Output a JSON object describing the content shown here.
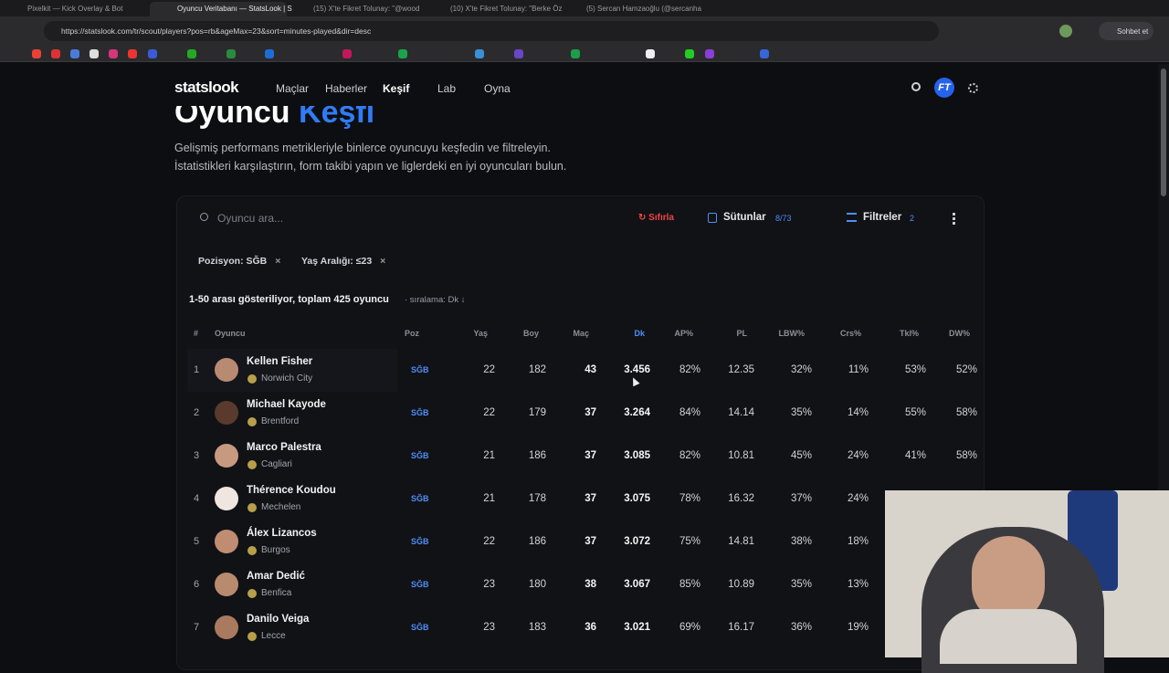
{
  "browser": {
    "tabs": [
      "Pixelkit — Kick Overlay & Bot",
      "Oyuncu Veritabanı — StatsLook | S",
      "(15) X'te Fikret Tolunay: \"@wood",
      "(10) X'te Fikret Tolunay: \"Berke Öz",
      "(5) Sercan Hamzaoğlu (@sercanha"
    ],
    "url": "https://statslook.com/tr/scout/players?pos=rb&ageMax=23&sort=minutes-played&dir=desc",
    "chat_button": "Sohbet et"
  },
  "nav": {
    "logo": "statslook",
    "links": [
      "Maçlar",
      "Haberler",
      "Keşif",
      "Lab",
      "Oyna"
    ],
    "avatar": "FT"
  },
  "header": {
    "title_main": "Oyuncu",
    "title_accent": "Keşfi",
    "description": [
      "Gelişmiş performans metrikleriyle binlerce oyuncuyu keşfedin ve filtreleyin.",
      "İstatistikleri karşılaştırın, form takibi yapın ve liglerdeki en iyi oyuncuları bulun."
    ]
  },
  "toolbar": {
    "search_placeholder": "Oyuncu ara...",
    "reset": "Sıfırla",
    "columns": "Sütunlar",
    "columns_count": "8/73",
    "filters": "Filtreler",
    "filters_count": "2"
  },
  "chips": [
    "Pozisyon: SĞB",
    "Yaş Aralığı: ≤23"
  ],
  "summary": "1-50 arası gösteriliyor, toplam 425 oyuncu",
  "sort_note": "· sıralama: Dk ↓",
  "table": {
    "columns": [
      "#",
      "Oyuncu",
      "Poz",
      "Yaş",
      "Boy",
      "Maç",
      "Dk",
      "AP%",
      "PL",
      "LBW%",
      "Crs%",
      "Tkl%",
      "DW%"
    ],
    "rows": [
      {
        "rank": "1",
        "name": "Kellen Fisher",
        "club": "Norwich City",
        "cells": [
          "SĞB",
          "22",
          "182",
          "43",
          "3.456",
          "82%",
          "12.35",
          "32%",
          "11%",
          "53%",
          "52%"
        ]
      },
      {
        "rank": "2",
        "name": "Michael Kayode",
        "club": "Brentford",
        "cells": [
          "SĞB",
          "22",
          "179",
          "37",
          "3.264",
          "84%",
          "14.14",
          "35%",
          "14%",
          "55%",
          "58%"
        ]
      },
      {
        "rank": "3",
        "name": "Marco Palestra",
        "club": "Cagliari",
        "cells": [
          "SĞB",
          "21",
          "186",
          "37",
          "3.085",
          "82%",
          "10.81",
          "45%",
          "24%",
          "41%",
          "58%"
        ]
      },
      {
        "rank": "4",
        "name": "Thérence Koudou",
        "club": "Mechelen",
        "cells": [
          "SĞB",
          "21",
          "178",
          "37",
          "3.075",
          "78%",
          "16.32",
          "37%",
          "24%"
        ]
      },
      {
        "rank": "5",
        "name": "Álex Lizancos",
        "club": "Burgos",
        "cells": [
          "SĞB",
          "22",
          "186",
          "37",
          "3.072",
          "75%",
          "14.81",
          "38%",
          "18%"
        ]
      },
      {
        "rank": "6",
        "name": "Amar Dedić",
        "club": "Benfica",
        "cells": [
          "SĞB",
          "23",
          "180",
          "38",
          "3.067",
          "85%",
          "10.89",
          "35%",
          "13%"
        ]
      },
      {
        "rank": "7",
        "name": "Danilo Veiga",
        "club": "Lecce",
        "cells": [
          "SĞB",
          "23",
          "183",
          "36",
          "3.021",
          "69%",
          "16.17",
          "36%",
          "19%"
        ]
      }
    ]
  }
}
